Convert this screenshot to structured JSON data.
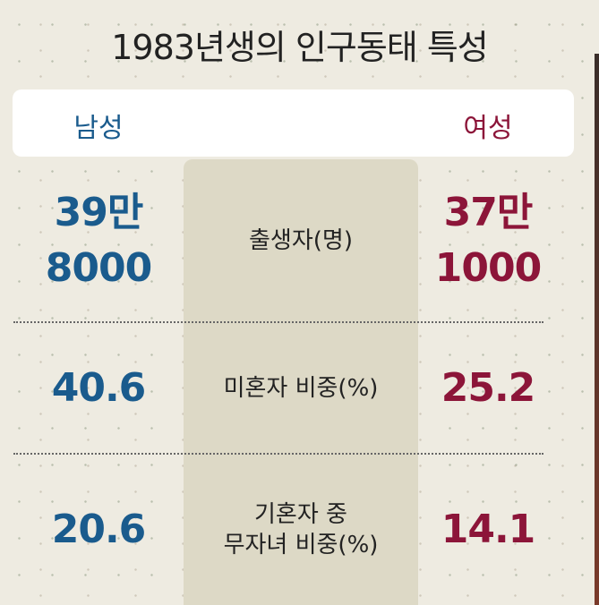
{
  "title": "1983년생의 인구동태 특성",
  "header": {
    "left": "남성",
    "right": "여성"
  },
  "rows": [
    {
      "label": [
        "출생자(명)"
      ],
      "male": [
        "39만",
        "8000"
      ],
      "female": [
        "37만",
        "1000"
      ]
    },
    {
      "label": [
        "미혼자 비중(%)"
      ],
      "male": [
        "40.6"
      ],
      "female": [
        "25.2"
      ]
    },
    {
      "label": [
        "기혼자 중",
        "무자녀 비중(%)"
      ],
      "male": [
        "20.6"
      ],
      "female": [
        "14.1"
      ]
    }
  ]
}
